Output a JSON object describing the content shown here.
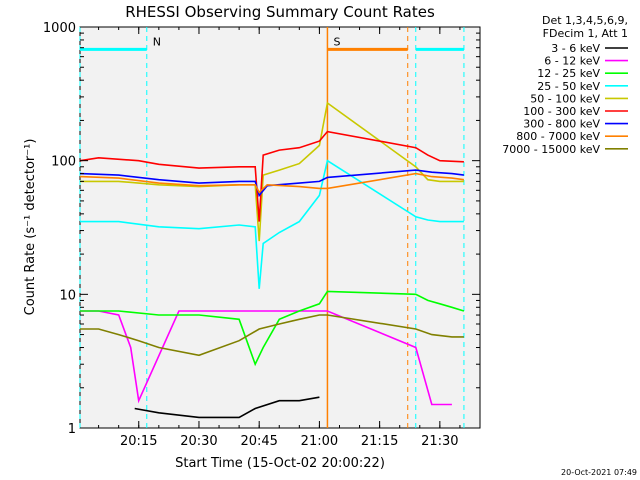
{
  "chart_data": {
    "type": "line",
    "title": "RHESSI Observing Summary Count Rates",
    "xlabel": "Start Time (15-Oct-02 20:00:22)",
    "ylabel": "Count Rate (s⁻¹ detector⁻¹)",
    "y_scale": "log",
    "ylim": [
      1,
      1000
    ],
    "xlim": [
      "20:00:22",
      "21:40"
    ],
    "x_ticks": [
      "20:15",
      "20:30",
      "20:45",
      "21:00",
      "21:15",
      "21:30"
    ],
    "y_ticks": [
      "1",
      "10",
      "100",
      "1000"
    ],
    "legend_header": [
      "Det 1,3,4,5,6,9,",
      "FDecim 1, Att 1"
    ],
    "legend_position": "right",
    "footer": "20-Oct-2021 07:49",
    "annotations": [
      {
        "text": "N",
        "color": "#00ffff",
        "time": "20:17",
        "y": 680
      },
      {
        "text": "S",
        "color": "#ff8000",
        "time": "21:02",
        "y": 680
      }
    ],
    "night_intervals": [
      [
        "20:00:22",
        "20:17"
      ],
      [
        "21:24",
        "21:36"
      ]
    ],
    "saa_intervals": [
      [
        "21:02",
        "21:22"
      ]
    ],
    "series": [
      {
        "name": "3 - 6 keV",
        "color": "#000000",
        "x": [
          "20:14",
          "20:20",
          "20:30",
          "20:40",
          "20:44",
          "20:50",
          "20:55",
          "21:00"
        ],
        "y": [
          1.4,
          1.3,
          1.2,
          1.2,
          1.4,
          1.6,
          1.6,
          1.7
        ]
      },
      {
        "name": "6 - 12 keV",
        "color": "#ff00ff",
        "x": [
          "20:00",
          "20:05",
          "20:10",
          "20:13",
          "20:15",
          "20:25",
          "20:35",
          "20:45",
          "20:55",
          "21:02",
          "21:24",
          "21:28",
          "21:33"
        ],
        "y": [
          7.5,
          7.5,
          7.0,
          4.0,
          1.6,
          7.5,
          7.5,
          7.5,
          7.5,
          7.5,
          4.0,
          1.5,
          1.5
        ]
      },
      {
        "name": "12 - 25 keV",
        "color": "#00ff00",
        "x": [
          "20:00",
          "20:10",
          "20:20",
          "20:30",
          "20:40",
          "20:44",
          "20:46",
          "20:50",
          "20:55",
          "21:00",
          "21:02",
          "21:24",
          "21:27",
          "21:30",
          "21:33",
          "21:36"
        ],
        "y": [
          7.5,
          7.5,
          7.0,
          7.0,
          6.5,
          3.0,
          4.0,
          6.5,
          7.5,
          8.5,
          10.5,
          10.0,
          9.0,
          8.5,
          8.0,
          7.5
        ]
      },
      {
        "name": "25 - 50 keV",
        "color": "#00ffff",
        "x": [
          "20:00",
          "20:10",
          "20:20",
          "20:30",
          "20:40",
          "20:44",
          "20:45",
          "20:46",
          "20:50",
          "20:55",
          "21:00",
          "21:02",
          "21:24",
          "21:27",
          "21:30",
          "21:36"
        ],
        "y": [
          35,
          35,
          32,
          31,
          33,
          32,
          11,
          24,
          29,
          35,
          55,
          100,
          38,
          36,
          35,
          35
        ]
      },
      {
        "name": "50 - 100 keV",
        "color": "#c8c800",
        "x": [
          "20:00",
          "20:10",
          "20:20",
          "20:30",
          "20:40",
          "20:44",
          "20:45",
          "20:46",
          "20:50",
          "20:55",
          "21:00",
          "21:02",
          "21:24",
          "21:27",
          "21:30",
          "21:36"
        ],
        "y": [
          70,
          70,
          66,
          64,
          66,
          66,
          25,
          78,
          85,
          95,
          130,
          270,
          90,
          72,
          70,
          70
        ]
      },
      {
        "name": "100 - 300 keV",
        "color": "#ff0000",
        "x": [
          "20:00",
          "20:05",
          "20:15",
          "20:20",
          "20:30",
          "20:40",
          "20:44",
          "20:45",
          "20:46",
          "20:50",
          "20:55",
          "21:00",
          "21:02",
          "21:24",
          "21:27",
          "21:30",
          "21:36"
        ],
        "y": [
          100,
          105,
          100,
          94,
          88,
          90,
          90,
          35,
          110,
          120,
          125,
          140,
          165,
          125,
          110,
          100,
          98
        ]
      },
      {
        "name": "300 - 800 keV",
        "color": "#0000ff",
        "x": [
          "20:00",
          "20:10",
          "20:20",
          "20:30",
          "20:40",
          "20:44",
          "20:45",
          "20:47",
          "20:55",
          "21:00",
          "21:02",
          "21:24",
          "21:28",
          "21:33",
          "21:36"
        ],
        "y": [
          80,
          78,
          72,
          68,
          70,
          70,
          55,
          65,
          68,
          70,
          75,
          85,
          82,
          80,
          78
        ]
      },
      {
        "name": "800 - 7000 keV",
        "color": "#ff8000",
        "x": [
          "20:00",
          "20:10",
          "20:20",
          "20:30",
          "20:40",
          "20:44",
          "20:45",
          "20:47",
          "20:55",
          "21:00",
          "21:02",
          "21:24",
          "21:28",
          "21:33",
          "21:36"
        ],
        "y": [
          76,
          74,
          68,
          65,
          66,
          66,
          58,
          66,
          64,
          62,
          62,
          80,
          76,
          74,
          72
        ]
      },
      {
        "name": "7000 - 15000 keV",
        "color": "#808000",
        "x": [
          "20:00",
          "20:05",
          "20:10",
          "20:15",
          "20:20",
          "20:30",
          "20:40",
          "20:45",
          "20:50",
          "20:55",
          "21:00",
          "21:02",
          "21:24",
          "21:28",
          "21:33",
          "21:36"
        ],
        "y": [
          5.5,
          5.5,
          5.0,
          4.5,
          4.0,
          3.5,
          4.5,
          5.5,
          6.0,
          6.5,
          7.0,
          7.0,
          5.5,
          5.0,
          4.8,
          4.8
        ]
      }
    ]
  }
}
